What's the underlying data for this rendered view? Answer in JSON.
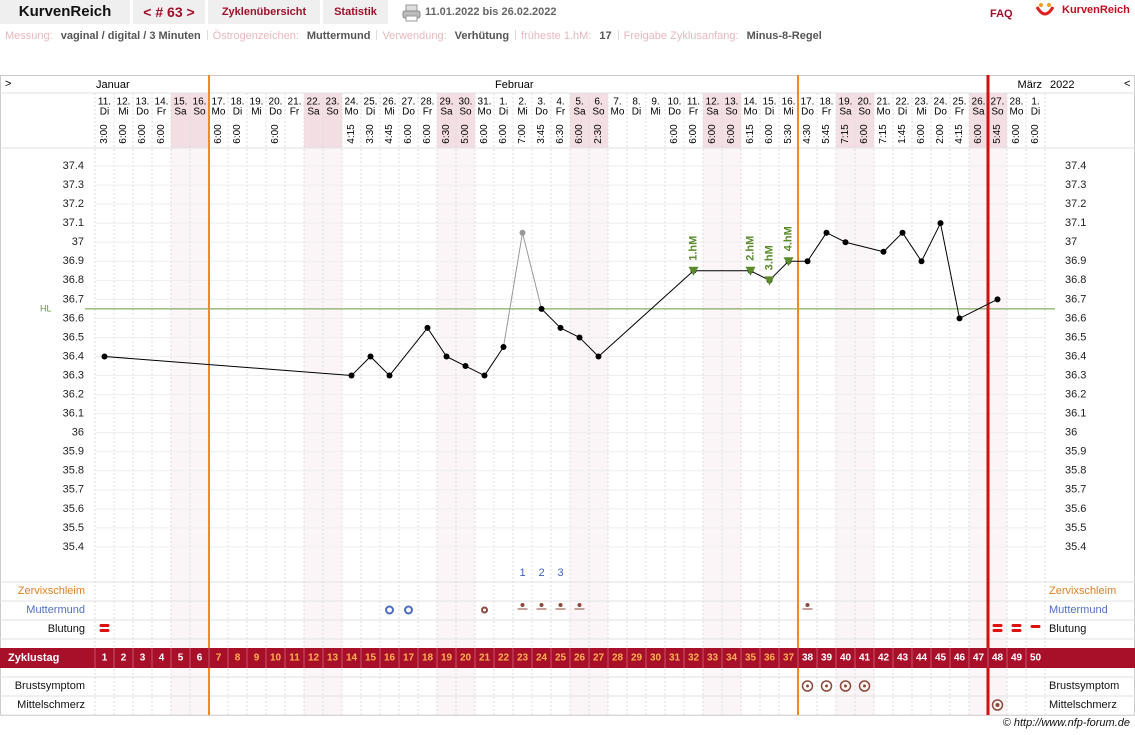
{
  "header": {
    "app": "KurvenReich",
    "cycle_nav": "< # 63 >",
    "tabs": [
      "Zyklenübersicht",
      "Statistik"
    ],
    "range": "11.01.2022 bis 26.02.2022",
    "faq": "FAQ",
    "logo": "KurvenReich"
  },
  "info": [
    {
      "label": "Messung:",
      "value": "vaginal / digital / 3 Minuten"
    },
    {
      "label": "Östrogenzeichen:",
      "value": "Muttermund"
    },
    {
      "label": "Verwendung:",
      "value": "Verhütung"
    },
    {
      "label": "früheste 1.hM:",
      "value": 17
    },
    {
      "label": "Freigabe Zyklusanfang:",
      "value": "Minus-8-Regel"
    }
  ],
  "footer": "© http://www.nfp-forum.de",
  "chart_data": {
    "type": "line",
    "nav_prev": ">",
    "nav_next": "<",
    "year": "2022",
    "month_labels": [
      "Januar",
      null,
      null,
      null,
      null,
      null,
      null,
      null,
      null,
      null,
      null,
      null,
      null,
      null,
      null,
      null,
      null,
      null,
      null,
      null,
      null,
      "Februar",
      null,
      null,
      null,
      null,
      null,
      null,
      null,
      null,
      null,
      null,
      null,
      null,
      null,
      null,
      null,
      null,
      null,
      null,
      null,
      null,
      null,
      null,
      null,
      null,
      null,
      null,
      null,
      "März"
    ],
    "dates": [
      "11.",
      "12.",
      "13.",
      "14.",
      "15.",
      "16.",
      "17.",
      "18.",
      "19.",
      "20.",
      "21.",
      "22.",
      "23.",
      "24.",
      "25.",
      "26.",
      "27.",
      "28.",
      "29.",
      "30.",
      "31.",
      "1.",
      "2.",
      "3.",
      "4.",
      "5.",
      "6.",
      "7.",
      "8.",
      "9.",
      "10.",
      "11.",
      "12.",
      "13.",
      "14.",
      "15.",
      "16.",
      "17.",
      "18.",
      "19.",
      "20.",
      "21.",
      "22.",
      "23.",
      "24.",
      "25.",
      "26.",
      "27.",
      "28.",
      "1."
    ],
    "weekdays": [
      "Di",
      "Mi",
      "Do",
      "Fr",
      "Sa",
      "So",
      "Mo",
      "Di",
      "Mi",
      "Do",
      "Fr",
      "Sa",
      "So",
      "Mo",
      "Di",
      "Mi",
      "Do",
      "Fr",
      "Sa",
      "So",
      "Mo",
      "Di",
      "Mi",
      "Do",
      "Fr",
      "Sa",
      "So",
      "Mo",
      "Di",
      "Mi",
      "Do",
      "Fr",
      "Sa",
      "So",
      "Mo",
      "Di",
      "Mi",
      "Do",
      "Fr",
      "Sa",
      "So",
      "Mo",
      "Di",
      "Mi",
      "Do",
      "Fr",
      "Sa",
      "So",
      "Mo",
      "Di"
    ],
    "times": [
      "3:00",
      "6:00",
      "6:00",
      "6:00",
      null,
      null,
      "6:00",
      "6:00",
      null,
      "6:00",
      null,
      null,
      null,
      "4:15",
      "3:30",
      "4:45",
      "6:00",
      "6:00",
      "6:30",
      "5:00",
      "6:00",
      "6:00",
      "7:00",
      "3:45",
      "6:30",
      "6:00",
      "2:30",
      null,
      null,
      null,
      "6:00",
      "6:00",
      "6:00",
      "6:00",
      "6:15",
      "6:00",
      "5:30",
      "4:30",
      "5:45",
      "7:15",
      "6:00",
      "7:15",
      "1:45",
      "6:00",
      "2:00",
      "4:15",
      "6:00",
      "5:45",
      "6:00",
      "6:00"
    ],
    "weekends": [
      5,
      6,
      12,
      13,
      19,
      20,
      26,
      27,
      33,
      34,
      40,
      41,
      47,
      48
    ],
    "weekend_color": "#f3dfe3",
    "cycle_day_label": "Zyklustag",
    "categories": [
      1,
      2,
      3,
      4,
      5,
      6,
      7,
      8,
      9,
      10,
      11,
      12,
      13,
      14,
      15,
      16,
      17,
      18,
      19,
      20,
      21,
      22,
      23,
      24,
      25,
      26,
      27,
      28,
      29,
      30,
      31,
      32,
      33,
      34,
      35,
      36,
      37,
      38,
      39,
      40,
      41,
      42,
      43,
      44,
      45,
      46,
      47,
      48,
      49,
      50
    ],
    "x": [
      1,
      14,
      15,
      16,
      18,
      19,
      20,
      21,
      22,
      23,
      24,
      25,
      26,
      27,
      32,
      35,
      36,
      37,
      38,
      39,
      40,
      42,
      43,
      44,
      45,
      46,
      48
    ],
    "values": [
      36.4,
      36.3,
      36.4,
      36.3,
      36.55,
      36.4,
      36.35,
      36.3,
      36.45,
      37.05,
      36.65,
      36.55,
      36.5,
      36.4,
      36.85,
      36.85,
      36.8,
      36.9,
      36.9,
      37.05,
      37.0,
      36.95,
      37.05,
      36.9,
      37.1,
      36.6,
      36.7
    ],
    "point_colors": [
      "#000",
      "#000",
      "#000",
      "#000",
      "#000",
      "#000",
      "#000",
      "#000",
      "#000",
      "#999",
      "#000",
      "#000",
      "#000",
      "#000",
      "#000",
      "#000",
      "#000",
      "#000",
      "#000",
      "#000",
      "#000",
      "#000",
      "#000",
      "#000",
      "#000",
      "#000",
      "#000"
    ],
    "ylim": [
      35.3,
      37.5
    ],
    "yticks": [
      35.4,
      35.5,
      35.6,
      35.7,
      35.8,
      35.9,
      36,
      36.1,
      36.2,
      36.3,
      36.4,
      36.5,
      36.6,
      36.7,
      36.8,
      36.9,
      37,
      37.1,
      37.2,
      37.3,
      37.4
    ],
    "grid": true,
    "hl": {
      "label": "HL",
      "value": 36.65,
      "color": "#6a9a3a"
    },
    "markers": [
      {
        "label": "1.hM",
        "day": 32
      },
      {
        "label": "2.hM",
        "day": 35
      },
      {
        "label": "3.hM",
        "day": 36
      },
      {
        "label": "4.hM",
        "day": 37
      }
    ],
    "marker_color": "#5a8a2a",
    "vlines": [
      {
        "day": 7,
        "color": "#f08a24"
      },
      {
        "day": 38,
        "color": "#f08a24"
      },
      {
        "day": 48,
        "color": "#d01010"
      }
    ],
    "cervix_mucus": {
      "label": "Zervixschleim",
      "entries": [
        {
          "day": 23,
          "text": "1"
        },
        {
          "day": 24,
          "text": "2"
        },
        {
          "day": 25,
          "text": "3"
        }
      ]
    },
    "cervix": {
      "label": "Muttermund",
      "symbols": [
        {
          "day": 16,
          "style": "ring",
          "color": "#4a6cc8"
        },
        {
          "day": 17,
          "style": "ring",
          "color": "#4a6cc8"
        },
        {
          "day": 21,
          "style": "ring",
          "color": "#8a4a3a"
        },
        {
          "day": 23,
          "style": "dot",
          "color": "#8a4a3a"
        },
        {
          "day": 24,
          "style": "dot",
          "color": "#8a4a3a"
        },
        {
          "day": 25,
          "style": "dot",
          "color": "#8a4a3a"
        },
        {
          "day": 26,
          "style": "dot",
          "color": "#8a4a3a"
        },
        {
          "day": 38,
          "style": "dot",
          "color": "#8a4a3a"
        }
      ]
    },
    "bleeding": {
      "label": "Blutung",
      "days": [
        1,
        48,
        49,
        50
      ],
      "color": "#e01010"
    },
    "breast": {
      "label": "Brustsymptom",
      "days": [
        38,
        39,
        40,
        41
      ],
      "color": "#8a4a3a"
    },
    "mittelschmerz": {
      "label": "Mittelschmerz",
      "days": [
        48
      ],
      "color": "#8a4a3a"
    }
  }
}
